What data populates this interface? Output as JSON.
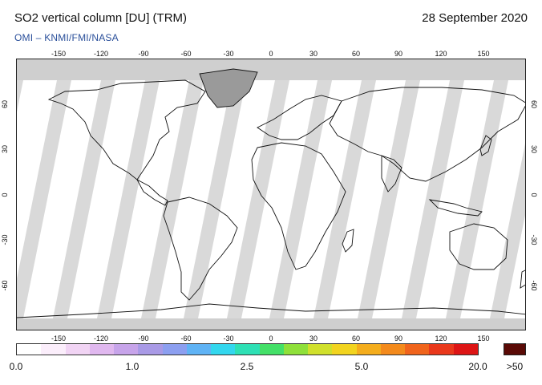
{
  "header": {
    "title": "SO2 vertical column [DU] (TRM)",
    "date": "28 September 2020",
    "source": "OMI  –  KNMI/FMI/NASA"
  },
  "map": {
    "lon_ticks": [
      "-150",
      "-120",
      "-90",
      "-60",
      "-30",
      "0",
      "30",
      "60",
      "90",
      "120",
      "150"
    ],
    "lat_ticks": [
      "60",
      "30",
      "0",
      "-30",
      "-60"
    ],
    "lon_range": [
      -180,
      180
    ],
    "lat_range": [
      -90,
      90
    ],
    "colors": {
      "no_data": "#cfcfcf",
      "orbit_gap": "#d9d9d9",
      "land_fill": "#9a9a9a",
      "coast": "#111111"
    }
  },
  "colorbar": {
    "labels": [
      "0.0",
      "1.0",
      "2.5",
      "5.0",
      "20.0"
    ],
    "over_label": ">50",
    "over_color": "#5a0a06",
    "colors": [
      "#ffffff",
      "#fbeefb",
      "#f1d4f4",
      "#e0b8ef",
      "#c7a4ea",
      "#a99ae6",
      "#8c9ff0",
      "#5fb3f5",
      "#33d7ee",
      "#2ee0b5",
      "#44e068",
      "#8fe03a",
      "#d0e02c",
      "#f2d41f",
      "#f4ad1d",
      "#f38a1c",
      "#f0641c",
      "#e9381b",
      "#dd1515"
    ]
  }
}
